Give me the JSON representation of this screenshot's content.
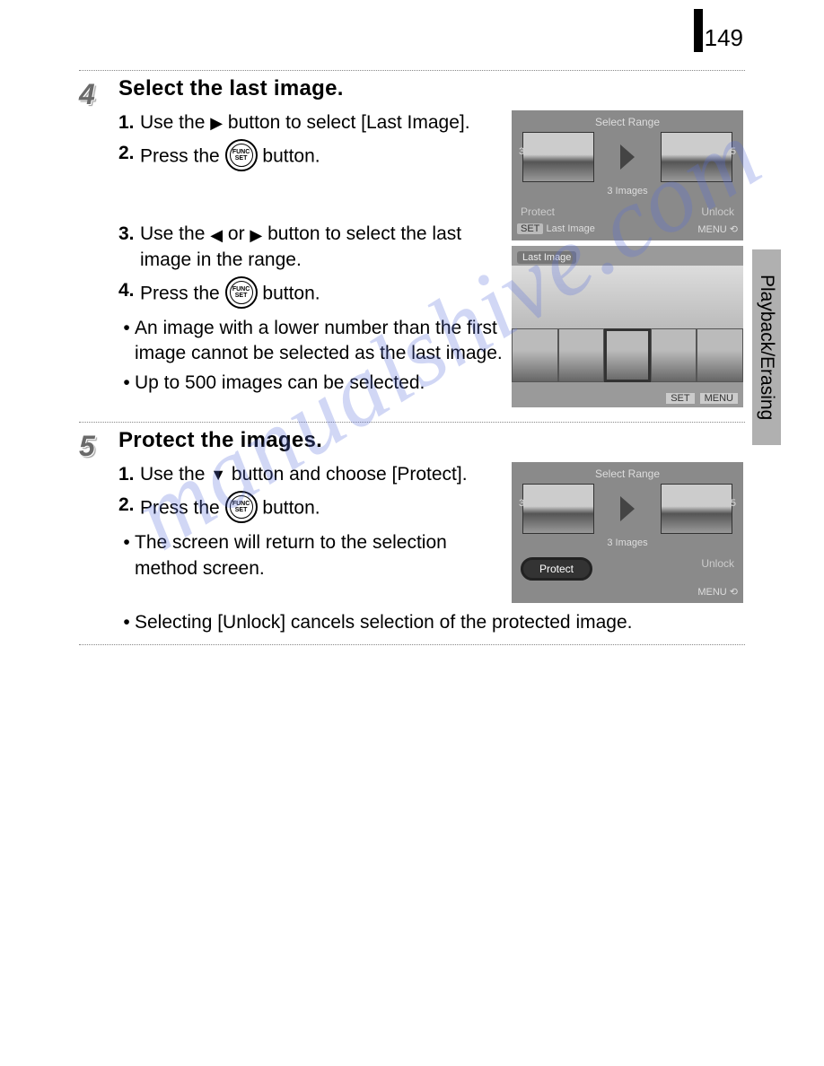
{
  "page_number": "149",
  "side_tab": "Playback/Erasing",
  "watermark": "manualshive.com",
  "steps": [
    {
      "num": "4",
      "title": "Select the last image.",
      "instructions": [
        {
          "n": "1.",
          "pre": "Use the ",
          "icon": "right-arrow",
          "post": " button to select [Last Image]."
        },
        {
          "n": "2.",
          "pre": "Press the ",
          "icon": "func-set",
          "post": " button."
        }
      ],
      "instructions2": [
        {
          "n": "3.",
          "pre": "Use the ",
          "icon": "left-right-arrow",
          "post": " button to select the last image in the range."
        },
        {
          "n": "4.",
          "pre": "Press the ",
          "icon": "func-set",
          "post": " button."
        }
      ],
      "bullets": [
        "An image with a lower number than the first image cannot be selected as the last image.",
        "Up to 500 images can be selected."
      ],
      "screen1": {
        "title": "Select Range",
        "left_num": "3",
        "right_num": "5",
        "sub": "3 Images",
        "btn_left": "Protect",
        "btn_right": "Unlock",
        "foot_left_tag": "SET",
        "foot_left": "Last Image",
        "foot_right": "MENU"
      },
      "screen2": {
        "tag": "Last Image",
        "foot_set": "SET",
        "foot_menu": "MENU"
      }
    },
    {
      "num": "5",
      "title": "Protect the images.",
      "instructions": [
        {
          "n": "1.",
          "pre": "Use the ",
          "icon": "down-arrow",
          "post": " button and choose [Protect]."
        },
        {
          "n": "2.",
          "pre": "Press the ",
          "icon": "func-set",
          "post": " button."
        }
      ],
      "bullets": [
        "The screen will return to the selection method screen."
      ],
      "full_bullet": "Selecting [Unlock] cancels selection of the protected image.",
      "screen1": {
        "title": "Select Range",
        "left_num": "3",
        "right_num": "5",
        "sub": "3 Images",
        "btn_left": "Protect",
        "btn_right": "Unlock",
        "foot_right": "MENU"
      }
    }
  ],
  "func_label_top": "FUNC",
  "func_label_bot": "SET",
  "colors": {
    "page_bg": "#ffffff",
    "text": "#000000",
    "step_num": "#6a6a6a",
    "dotted": "#888888",
    "cam_bg": "#8a8a8a",
    "side_tab": "#b0b0b0",
    "watermark": "rgba(90,110,220,0.28)"
  }
}
